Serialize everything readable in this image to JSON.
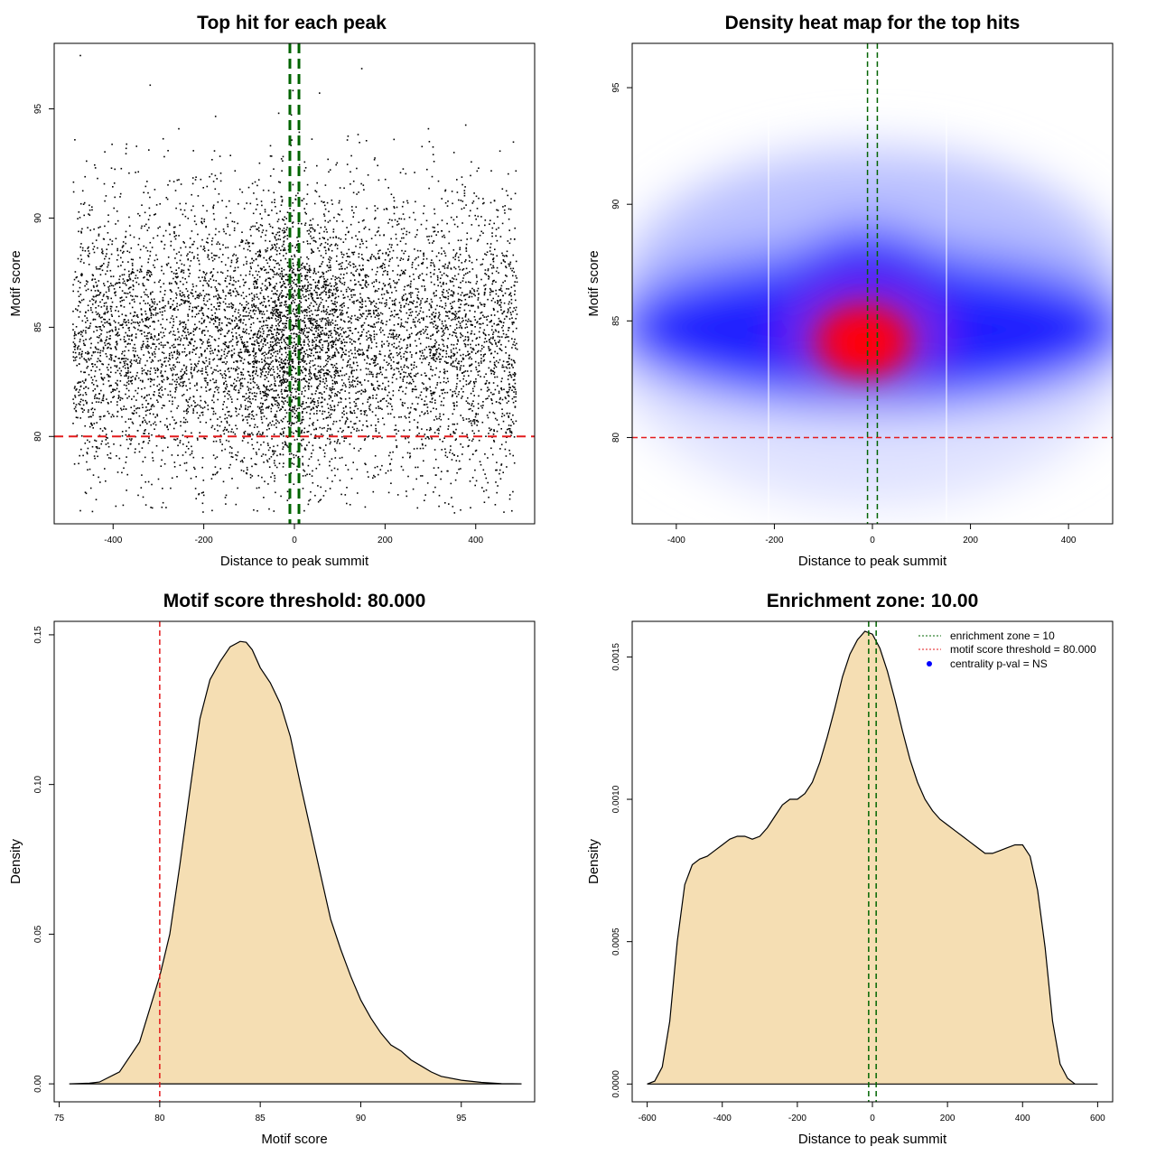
{
  "chart_data": [
    {
      "type": "scatter",
      "title": "Top hit for each peak",
      "xlabel": "Distance to peak summit",
      "ylabel": "Motif score",
      "xlim": [
        -530,
        530
      ],
      "ylim": [
        76.0,
        98.0
      ],
      "x_ticks": [
        -400,
        -200,
        0,
        200,
        400
      ],
      "y_ticks": [
        80,
        85,
        90,
        95
      ],
      "points": {
        "x_range": [
          -490,
          490
        ],
        "y_center": 84.5,
        "y_spread": 3.3,
        "central_enrichment": true
      },
      "vlines": [
        -10,
        10
      ],
      "vline_color": "#006400",
      "hline": 80,
      "hline_color": "#e31a1c",
      "grid": false
    },
    {
      "type": "heatmap",
      "title": "Density heat map for the top hits",
      "xlabel": "Distance to peak summit",
      "ylabel": "Motif score",
      "xlim": [
        -490,
        490
      ],
      "ylim": [
        76.3,
        96.9
      ],
      "x_ticks": [
        -400,
        -200,
        0,
        200,
        400
      ],
      "y_ticks": [
        80,
        85,
        90,
        95
      ],
      "density_peak": {
        "x": -20,
        "y": 84
      },
      "colors": [
        "#ffffff",
        "#0000ff",
        "#ff0000"
      ],
      "vlines": [
        -10,
        10
      ],
      "vline_color": "#006400",
      "hline": 80,
      "hline_color": "#e31a1c",
      "grid": false
    },
    {
      "type": "area",
      "title": "Motif score threshold: 80.000",
      "xlabel": "Motif score",
      "ylabel": "Density",
      "xlim": [
        74.75,
        98.65
      ],
      "ylim": [
        -0.006,
        0.1545
      ],
      "x_ticks": [
        75,
        80,
        85,
        90,
        95
      ],
      "y_ticks": [
        "0.00",
        "0.05",
        "0.10",
        "0.15"
      ],
      "fill": "#f5deb3",
      "x": [
        75.5,
        76.5,
        77.0,
        78.0,
        79.0,
        80.0,
        80.5,
        81.0,
        81.5,
        82.0,
        82.5,
        83.0,
        83.5,
        84.0,
        84.3,
        84.6,
        85.0,
        85.5,
        86.0,
        86.5,
        87.0,
        87.5,
        88.0,
        88.5,
        89.0,
        89.5,
        90.0,
        90.5,
        91.0,
        91.5,
        92.0,
        92.5,
        93.0,
        93.5,
        94.0,
        95.0,
        96.0,
        97.0,
        98.0
      ],
      "values": [
        0.0,
        0.0002,
        0.0006,
        0.004,
        0.014,
        0.036,
        0.05,
        0.073,
        0.098,
        0.122,
        0.135,
        0.141,
        0.146,
        0.1478,
        0.1475,
        0.145,
        0.139,
        0.134,
        0.127,
        0.116,
        0.1,
        0.085,
        0.07,
        0.055,
        0.045,
        0.036,
        0.028,
        0.022,
        0.017,
        0.013,
        0.011,
        0.008,
        0.006,
        0.004,
        0.0025,
        0.0012,
        0.0005,
        0.0001,
        0.0
      ],
      "vline": 80,
      "vline_color": "#e31a1c"
    },
    {
      "type": "area",
      "title": "Enrichment zone: 10.00",
      "xlabel": "Distance to peak summit",
      "ylabel": "Density",
      "xlim": [
        -640,
        640
      ],
      "ylim": [
        -6.25e-05,
        0.001625
      ],
      "x_ticks": [
        -600,
        -400,
        -200,
        0,
        200,
        400,
        600
      ],
      "y_ticks": [
        "0.0000",
        "0.0005",
        "0.0010",
        "0.0015"
      ],
      "fill": "#f5deb3",
      "x": [
        -600,
        -580,
        -560,
        -540,
        -520,
        -500,
        -480,
        -460,
        -440,
        -420,
        -400,
        -380,
        -360,
        -340,
        -320,
        -300,
        -280,
        -260,
        -240,
        -220,
        -200,
        -180,
        -160,
        -140,
        -120,
        -100,
        -80,
        -60,
        -40,
        -20,
        0,
        20,
        40,
        60,
        80,
        100,
        120,
        140,
        160,
        180,
        200,
        220,
        240,
        260,
        280,
        300,
        320,
        340,
        360,
        380,
        400,
        420,
        440,
        460,
        480,
        500,
        520,
        540,
        560,
        580,
        600
      ],
      "values": [
        0.0,
        1e-05,
        6e-05,
        0.00022,
        0.0005,
        0.0007,
        0.00077,
        0.00079,
        0.0008,
        0.00082,
        0.00084,
        0.00086,
        0.00087,
        0.00087,
        0.00086,
        0.00087,
        0.0009,
        0.00094,
        0.00098,
        0.001,
        0.001,
        0.00102,
        0.00106,
        0.00113,
        0.00122,
        0.00132,
        0.00143,
        0.00151,
        0.00156,
        0.00159,
        0.00158,
        0.00153,
        0.00145,
        0.00135,
        0.00124,
        0.00114,
        0.00106,
        0.001,
        0.00096,
        0.00093,
        0.00091,
        0.00089,
        0.00087,
        0.00085,
        0.00083,
        0.00081,
        0.00081,
        0.00082,
        0.00083,
        0.00084,
        0.00084,
        0.0008,
        0.00068,
        0.00048,
        0.00022,
        7e-05,
        2e-05,
        0.0,
        0.0,
        0.0,
        0.0
      ],
      "vlines": [
        -10,
        10
      ],
      "vline_color": "#006400",
      "legend": {
        "placement": "top-right",
        "entries": [
          {
            "label": "enrichment zone = 10",
            "color": "#006400",
            "style": "dotted-line"
          },
          {
            "label": "motif score threshold = 80.000",
            "color": "#e31a1c",
            "style": "dotted-line"
          },
          {
            "label": "centrality p-val = NS",
            "color": "#0000ff",
            "style": "point"
          }
        ]
      }
    }
  ]
}
